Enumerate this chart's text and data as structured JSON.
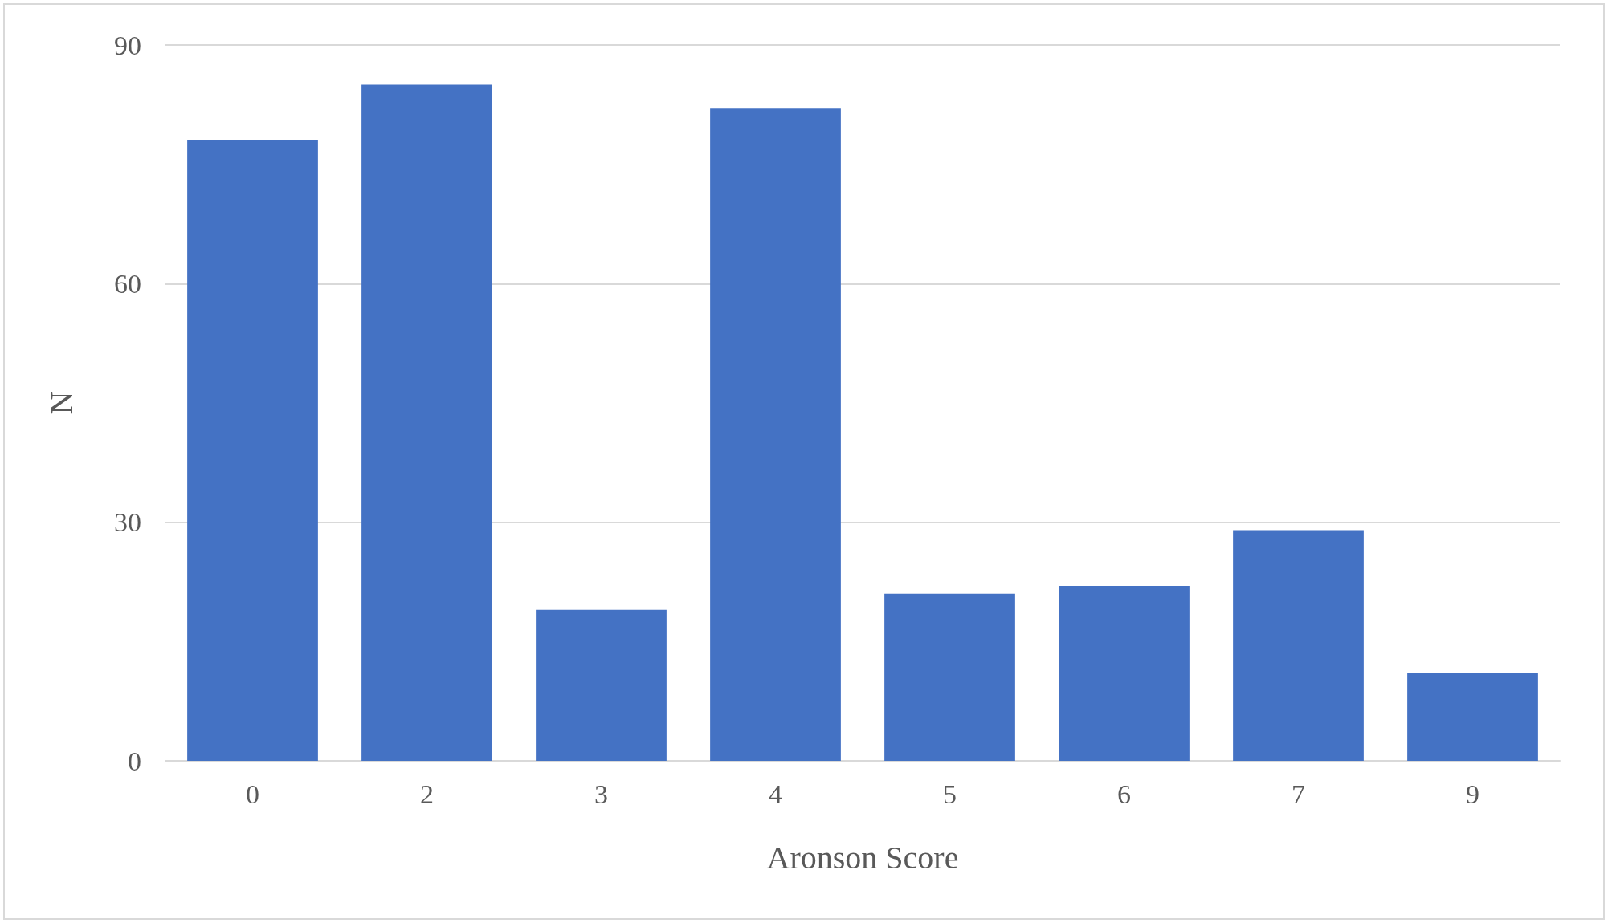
{
  "chart_data": {
    "type": "bar",
    "xlabel": "Aronson Score",
    "ylabel": "N",
    "categories": [
      "0",
      "2",
      "3",
      "4",
      "5",
      "6",
      "7",
      "9"
    ],
    "values": [
      78,
      85,
      19,
      82,
      21,
      22,
      29,
      11
    ],
    "color": "#4472c4",
    "ylim": [
      0,
      90
    ],
    "yticks": [
      0,
      30,
      60,
      90
    ],
    "grid": "y"
  }
}
